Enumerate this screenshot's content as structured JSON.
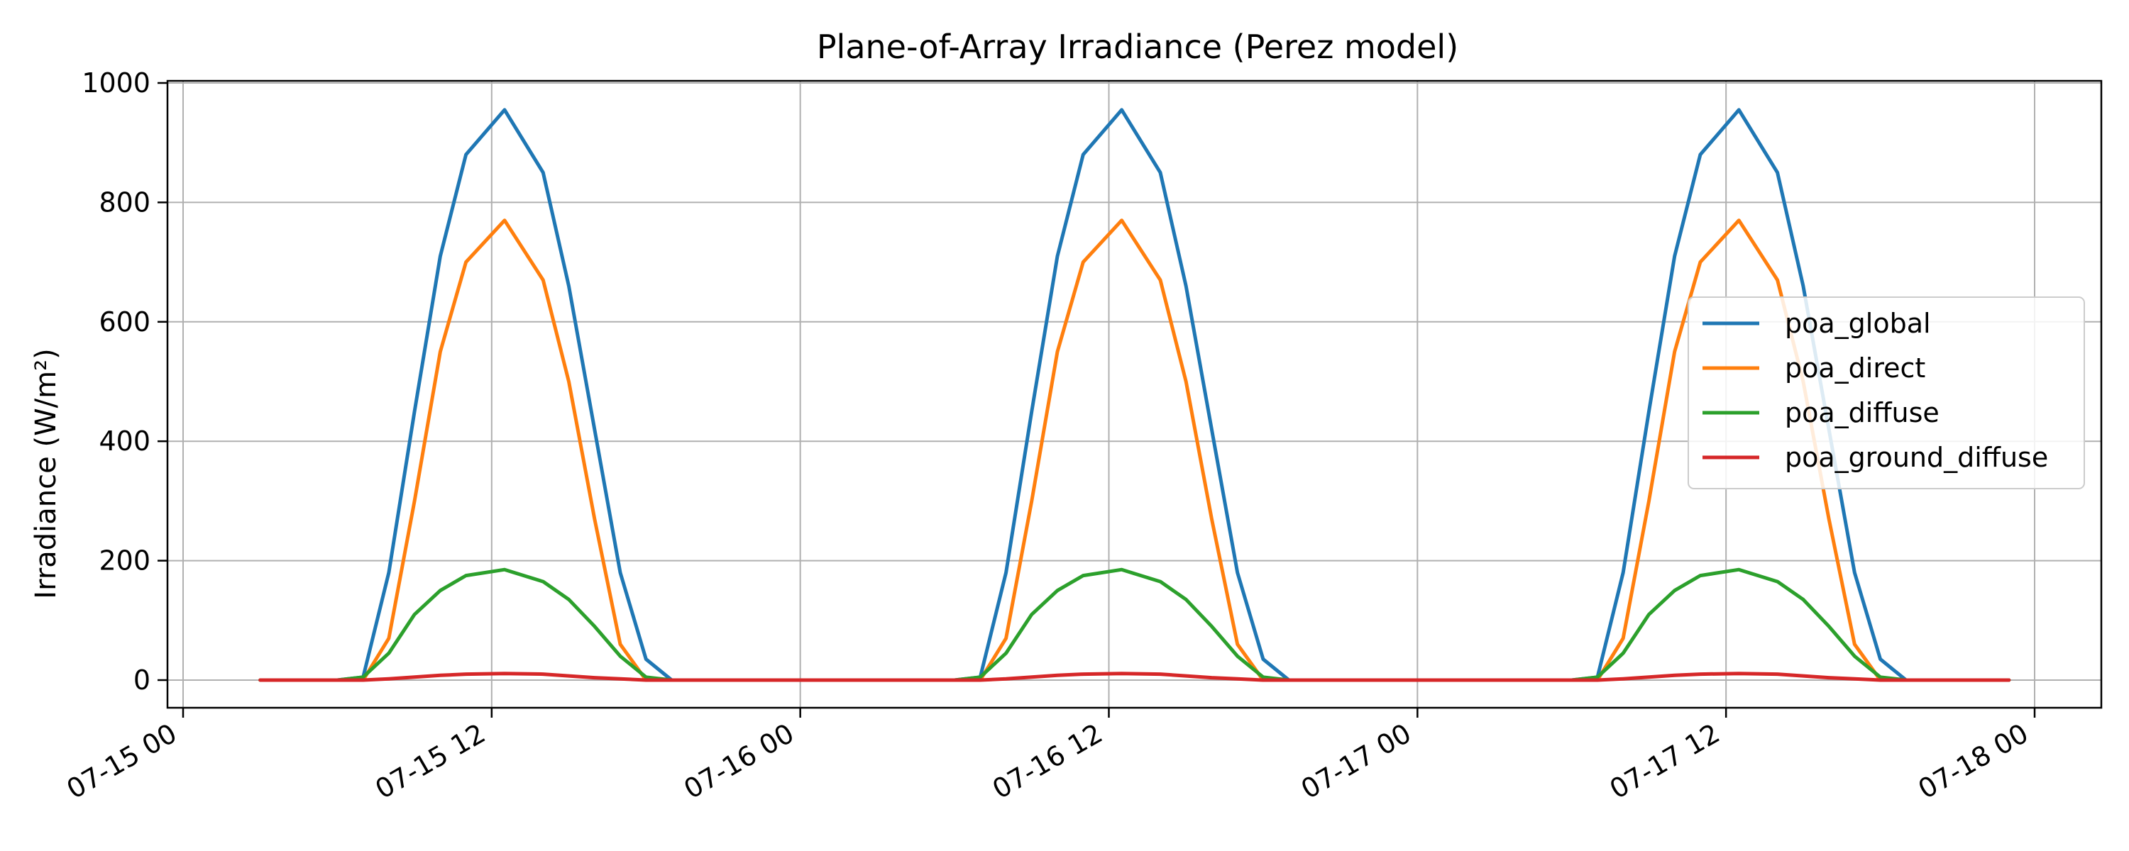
{
  "chart_data": {
    "type": "line",
    "title": "Plane-of-Array Irradiance (Perez model)",
    "xlabel": "",
    "ylabel": "Irradiance (W/m²)",
    "x_range": [
      "2024-07-15 00:00",
      "2024-07-18 00:00"
    ],
    "x_ticks": [
      "07-15 00",
      "07-15 12",
      "07-16 00",
      "07-16 12",
      "07-17 00",
      "07-17 12",
      "07-18 00"
    ],
    "ylim": [
      -50,
      1000
    ],
    "y_ticks": [
      0,
      200,
      400,
      600,
      800,
      1000
    ],
    "grid": true,
    "legend_position": "center-right",
    "x": [
      "2024-07-15 03:00",
      "2024-07-15 06:00",
      "2024-07-15 07:00",
      "2024-07-15 08:00",
      "2024-07-15 09:00",
      "2024-07-15 10:00",
      "2024-07-15 11:00",
      "2024-07-15 12:30",
      "2024-07-15 14:00",
      "2024-07-15 15:00",
      "2024-07-15 16:00",
      "2024-07-15 17:00",
      "2024-07-15 18:00",
      "2024-07-15 19:00",
      "2024-07-15 20:00",
      "2024-07-16 03:00",
      "2024-07-16 06:00",
      "2024-07-16 07:00",
      "2024-07-16 08:00",
      "2024-07-16 09:00",
      "2024-07-16 10:00",
      "2024-07-16 11:00",
      "2024-07-16 12:30",
      "2024-07-16 14:00",
      "2024-07-16 15:00",
      "2024-07-16 16:00",
      "2024-07-16 17:00",
      "2024-07-16 18:00",
      "2024-07-16 19:00",
      "2024-07-16 20:00",
      "2024-07-17 03:00",
      "2024-07-17 06:00",
      "2024-07-17 07:00",
      "2024-07-17 08:00",
      "2024-07-17 09:00",
      "2024-07-17 10:00",
      "2024-07-17 11:00",
      "2024-07-17 12:30",
      "2024-07-17 14:00",
      "2024-07-17 15:00",
      "2024-07-17 16:00",
      "2024-07-17 17:00",
      "2024-07-17 18:00",
      "2024-07-17 19:00",
      "2024-07-17 20:00",
      "2024-07-17 23:00"
    ],
    "series": [
      {
        "name": "poa_global",
        "color": "#1f77b4",
        "values": [
          0,
          0,
          5,
          180,
          450,
          710,
          880,
          955,
          850,
          660,
          420,
          180,
          35,
          0,
          0,
          0,
          0,
          5,
          180,
          450,
          710,
          880,
          955,
          850,
          660,
          420,
          180,
          35,
          0,
          0,
          0,
          0,
          5,
          180,
          450,
          710,
          880,
          955,
          850,
          660,
          420,
          180,
          35,
          0,
          0,
          0
        ]
      },
      {
        "name": "poa_direct",
        "color": "#ff7f0e",
        "values": [
          0,
          0,
          0,
          70,
          300,
          550,
          700,
          770,
          670,
          500,
          270,
          60,
          0,
          0,
          0,
          0,
          0,
          0,
          70,
          300,
          550,
          700,
          770,
          670,
          500,
          270,
          60,
          0,
          0,
          0,
          0,
          0,
          0,
          70,
          300,
          550,
          700,
          770,
          670,
          500,
          270,
          60,
          0,
          0,
          0,
          0
        ]
      },
      {
        "name": "poa_diffuse",
        "color": "#2ca02c",
        "values": [
          0,
          0,
          5,
          45,
          110,
          150,
          175,
          185,
          165,
          135,
          90,
          40,
          5,
          0,
          0,
          0,
          0,
          5,
          45,
          110,
          150,
          175,
          185,
          165,
          135,
          90,
          40,
          5,
          0,
          0,
          0,
          0,
          5,
          45,
          110,
          150,
          175,
          185,
          165,
          135,
          90,
          40,
          5,
          0,
          0,
          0
        ]
      },
      {
        "name": "poa_ground_diffuse",
        "color": "#d62728",
        "values": [
          0,
          0,
          0,
          2,
          5,
          8,
          10,
          11,
          10,
          7,
          4,
          2,
          0,
          0,
          0,
          0,
          0,
          0,
          2,
          5,
          8,
          10,
          11,
          10,
          7,
          4,
          2,
          0,
          0,
          0,
          0,
          0,
          0,
          2,
          5,
          8,
          10,
          11,
          10,
          7,
          4,
          2,
          0,
          0,
          0,
          0
        ]
      }
    ]
  }
}
